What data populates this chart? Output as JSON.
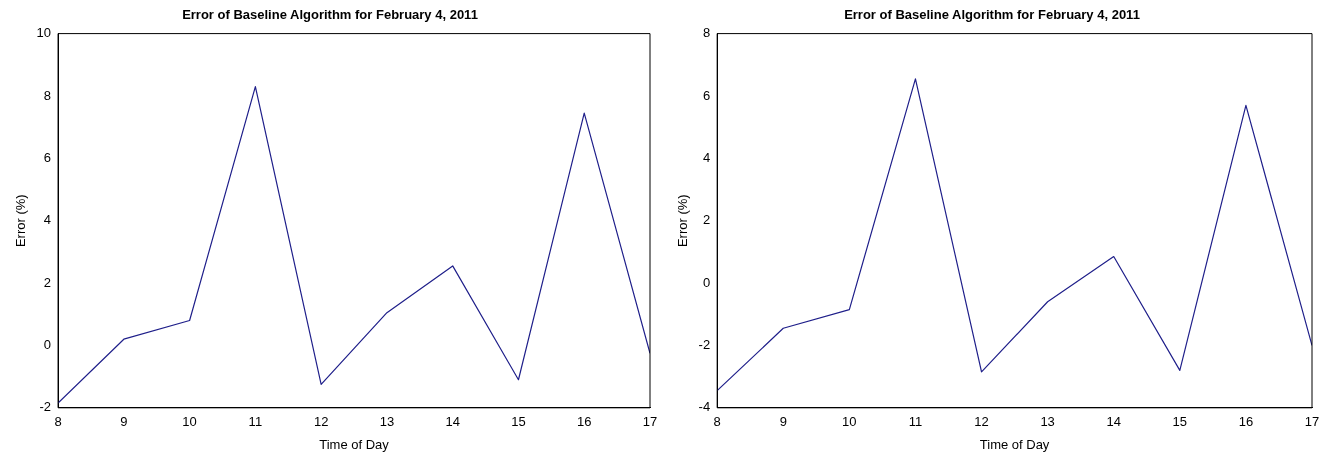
{
  "chart_data": [
    {
      "type": "line",
      "title": "Error of Baseline Algorithm for February 4, 2011",
      "xlabel": "Time of Day",
      "ylabel": "Error (%)",
      "x": [
        8,
        9,
        10,
        11,
        12,
        13,
        14,
        15,
        16,
        17
      ],
      "series": [
        {
          "color": "#1f1f8a",
          "values": [
            -1.85,
            0.2,
            0.8,
            8.3,
            -1.25,
            1.05,
            2.55,
            -1.1,
            7.45,
            -0.25
          ]
        }
      ],
      "xlim": [
        8,
        17
      ],
      "xticks": [
        8,
        9,
        10,
        11,
        12,
        13,
        14,
        15,
        16,
        17
      ],
      "ylim": [
        -2,
        10
      ],
      "yticks": [
        -2,
        0,
        2,
        4,
        6,
        8,
        10
      ],
      "grid": false,
      "legend": false,
      "marker": "none",
      "line_style": "solid"
    },
    {
      "type": "line",
      "title": "Error of Baseline Algorithm for February 4, 2011",
      "xlabel": "Time of Day",
      "ylabel": "Error (%)",
      "x": [
        8,
        9,
        10,
        11,
        12,
        13,
        14,
        15,
        16,
        17
      ],
      "series": [
        {
          "color": "#1f1f8a",
          "values": [
            -3.45,
            -1.45,
            -0.85,
            6.55,
            -2.85,
            -0.6,
            0.85,
            -2.8,
            5.7,
            -2.0
          ]
        }
      ],
      "xlim": [
        8,
        17
      ],
      "xticks": [
        8,
        9,
        10,
        11,
        12,
        13,
        14,
        15,
        16,
        17
      ],
      "ylim": [
        -4,
        8
      ],
      "yticks": [
        -4,
        -2,
        0,
        2,
        4,
        6,
        8
      ],
      "grid": false,
      "legend": false,
      "marker": "none",
      "line_style": "solid"
    }
  ]
}
